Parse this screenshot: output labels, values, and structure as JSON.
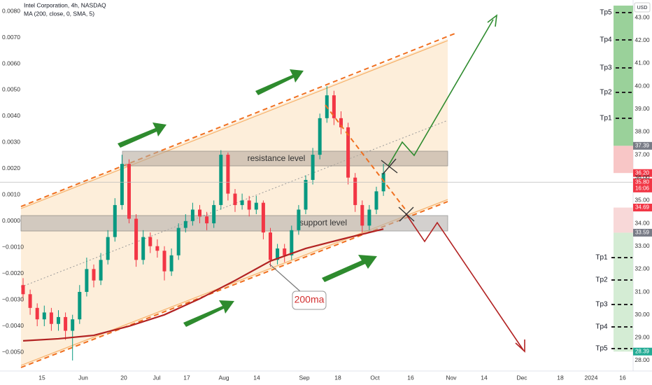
{
  "chart_data": {
    "type": "candlestick",
    "title": "Intel Corporation, 4h, NASDAQ",
    "subtitle": "MA (200, close, 0, SMA, 5)",
    "up_color": "#089981",
    "down_color": "#f23645",
    "ylim": [
      27.54,
      43.77
    ],
    "yticks": [
      {
        "value": 28,
        "label": "28.00"
      },
      {
        "value": 29,
        "label": "29.00"
      },
      {
        "value": 30,
        "label": "30.00"
      },
      {
        "value": 31,
        "label": "31.00"
      },
      {
        "value": 32,
        "label": "32.00"
      },
      {
        "value": 33,
        "label": "33.00"
      },
      {
        "value": 34,
        "label": "34.00"
      },
      {
        "value": 35,
        "label": "35.00"
      },
      {
        "value": 36,
        "label": "36.00"
      },
      {
        "value": 37,
        "label": "37.00"
      },
      {
        "value": 38,
        "label": "38.00"
      },
      {
        "value": 39,
        "label": "39.00"
      },
      {
        "value": 40,
        "label": "40.00"
      },
      {
        "value": 41,
        "label": "41.00"
      },
      {
        "value": 42,
        "label": "42.00"
      },
      {
        "value": 43,
        "label": "43.00"
      }
    ],
    "y2lim": [
      -0.00572,
      0.00843
    ],
    "y2ticks": [
      {
        "value": 0.008,
        "label": "0.0080"
      },
      {
        "value": 0.007,
        "label": "0.0070"
      },
      {
        "value": 0.006,
        "label": "0.0060"
      },
      {
        "value": 0.005,
        "label": "0.0050"
      },
      {
        "value": 0.004,
        "label": "0.0040"
      },
      {
        "value": 0.003,
        "label": "0.0030"
      },
      {
        "value": 0.002,
        "label": "0.0020"
      },
      {
        "value": 0.001,
        "label": "0.0010"
      },
      {
        "value": 0,
        "label": "0.0000"
      },
      {
        "value": -0.001,
        "label": "−0.0010"
      },
      {
        "value": -0.002,
        "label": "−0.0020"
      },
      {
        "value": -0.003,
        "label": "−0.0030"
      },
      {
        "value": -0.004,
        "label": "−0.0040"
      },
      {
        "value": -0.005,
        "label": "−0.0050"
      }
    ],
    "xlabels": [
      "15",
      "Jun",
      "20",
      "Jul",
      "17",
      "Aug",
      "14",
      "Sep",
      "18",
      "Oct",
      "16",
      "Nov",
      "14",
      "Dec",
      "18",
      "2024",
      "16"
    ],
    "candles": {
      "open": [
        31.3,
        30.9,
        30.3,
        29.8,
        30.1,
        29.6,
        29.9,
        29.3,
        29.8,
        31.0,
        32.0,
        31.5,
        32.4,
        33.4,
        34.8,
        36.6,
        34.2,
        32.4,
        33.4,
        33.0,
        32.8,
        31.9,
        32.6,
        33.8,
        34.1,
        34.6,
        34.3,
        34.0,
        34.8,
        37.0,
        35.3,
        34.8,
        35.0,
        34.6,
        34.9,
        33.6,
        32.4,
        32.9,
        32.6,
        33.7,
        34.6,
        35.9,
        37.0,
        38.6,
        39.6,
        38.6,
        38.2,
        36.0,
        34.8,
        33.9,
        34.6,
        35.4
      ],
      "high": [
        31.6,
        31.1,
        30.5,
        30.4,
        30.3,
        30.2,
        30.1,
        30.0,
        31.3,
        32.5,
        32.2,
        32.7,
        33.7,
        35.1,
        37.0,
        36.8,
        34.4,
        33.7,
        33.6,
        33.3,
        33.0,
        32.9,
        34.0,
        34.4,
        34.9,
        34.8,
        34.5,
        35.0,
        37.2,
        37.1,
        35.5,
        35.3,
        35.2,
        35.2,
        35.0,
        33.8,
        33.1,
        33.1,
        33.9,
        34.8,
        36.1,
        37.3,
        38.8,
        40.0,
        39.8,
        38.9,
        38.4,
        36.2,
        35.0,
        34.8,
        35.6,
        36.6
      ],
      "low": [
        30.6,
        30.0,
        29.5,
        29.5,
        29.3,
        29.3,
        28.9,
        28.0,
        29.6,
        30.8,
        31.2,
        31.3,
        32.2,
        33.2,
        34.6,
        34.0,
        32.1,
        32.2,
        32.7,
        32.5,
        31.5,
        31.7,
        32.4,
        33.6,
        33.9,
        34.0,
        33.7,
        33.8,
        34.6,
        35.0,
        34.5,
        34.6,
        34.3,
        34.4,
        33.3,
        32.1,
        32.2,
        32.3,
        32.4,
        33.5,
        34.4,
        35.7,
        36.8,
        38.4,
        38.3,
        37.9,
        35.7,
        34.5,
        33.6,
        33.7,
        34.4,
        35.2
      ],
      "close": [
        30.9,
        30.3,
        29.8,
        30.1,
        29.6,
        29.9,
        29.3,
        29.8,
        31.0,
        32.0,
        31.5,
        32.4,
        33.4,
        34.8,
        36.6,
        34.2,
        32.4,
        33.4,
        33.0,
        32.8,
        31.9,
        32.6,
        33.8,
        34.1,
        34.6,
        34.3,
        34.0,
        34.8,
        37.0,
        35.3,
        34.8,
        35.0,
        34.6,
        34.9,
        33.6,
        32.4,
        32.9,
        32.6,
        33.7,
        34.6,
        35.9,
        37.0,
        38.6,
        39.6,
        38.6,
        38.2,
        36.0,
        34.8,
        33.9,
        34.6,
        35.4,
        36.2
      ]
    },
    "ma": {
      "color": "#b22222",
      "x": [
        0,
        5,
        10,
        15,
        20,
        25,
        30,
        35,
        40,
        45,
        51
      ],
      "values": [
        28.86,
        28.95,
        29.1,
        29.5,
        30.0,
        30.7,
        31.5,
        32.35,
        32.9,
        33.3,
        33.75
      ]
    },
    "price_labels": {
      "values": [
        37.39,
        36.2,
        35.8,
        34.69,
        33.59,
        28.39
      ],
      "value_labels": [
        "37.39",
        "36.20",
        "35.80",
        "34.69",
        "33.59",
        "28.39"
      ],
      "colors": [
        "#787b86",
        "#f23645",
        "#f23645",
        "#f23645",
        "#787b86",
        "#22ab94"
      ]
    },
    "time_label": "16:06",
    "currency": "USD",
    "targets_up": [
      "Tp5",
      "Tp4",
      "Tp3",
      "Tp2",
      "Tp1"
    ],
    "targets_down": [
      "Tp1",
      "Tp2",
      "Tp3",
      "Tp4",
      "Tp5"
    ],
    "annotations": {
      "resistance": "resistance level",
      "support": "support level",
      "ma": "200ma"
    }
  }
}
